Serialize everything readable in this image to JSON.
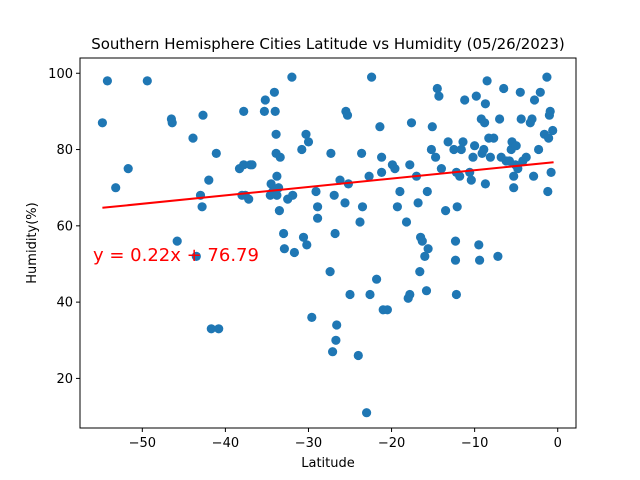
{
  "chart_data": {
    "type": "scatter",
    "title": "Southern Hemisphere Cities Latitude vs Humidity (05/26/2023)",
    "xlabel": "Latitude",
    "ylabel": "Humidity(%)",
    "xlim": [
      -57.5,
      2.2
    ],
    "ylim": [
      7,
      104
    ],
    "xticks": [
      -50,
      -40,
      -30,
      -20,
      -10,
      0
    ],
    "yticks": [
      20,
      40,
      60,
      80,
      100
    ],
    "grid": false,
    "point_color": "#1f77b4",
    "regression": {
      "slope": 0.22,
      "intercept": 76.79,
      "x_range": [
        -54.8,
        -0.5
      ],
      "color": "#ff0000",
      "equation_label": "y = 0.22x + 76.79"
    },
    "points": [
      [
        -54.8,
        87
      ],
      [
        -54.2,
        98
      ],
      [
        -53.2,
        70
      ],
      [
        -51.7,
        75
      ],
      [
        -49.4,
        98
      ],
      [
        -46.5,
        88
      ],
      [
        -46.4,
        87
      ],
      [
        -45.8,
        56
      ],
      [
        -43.9,
        83
      ],
      [
        -43.5,
        52
      ],
      [
        -43.0,
        68
      ],
      [
        -42.8,
        65
      ],
      [
        -42.7,
        89
      ],
      [
        -42.0,
        72
      ],
      [
        -41.7,
        33
      ],
      [
        -41.1,
        79
      ],
      [
        -40.8,
        33
      ],
      [
        -38.3,
        75
      ],
      [
        -38.0,
        68
      ],
      [
        -37.8,
        90
      ],
      [
        -37.8,
        76
      ],
      [
        -37.6,
        68
      ],
      [
        -37.2,
        67
      ],
      [
        -37.0,
        76
      ],
      [
        -36.8,
        76
      ],
      [
        -35.3,
        90
      ],
      [
        -35.2,
        93
      ],
      [
        -34.6,
        68
      ],
      [
        -34.5,
        71
      ],
      [
        -34.3,
        69
      ],
      [
        -34.1,
        95
      ],
      [
        -34.0,
        90
      ],
      [
        -33.9,
        84
      ],
      [
        -33.9,
        79
      ],
      [
        -33.8,
        73
      ],
      [
        -33.8,
        68
      ],
      [
        -33.6,
        70
      ],
      [
        -33.5,
        64
      ],
      [
        -33.4,
        78
      ],
      [
        -33.0,
        58
      ],
      [
        -32.9,
        54
      ],
      [
        -32.5,
        67
      ],
      [
        -32.0,
        99
      ],
      [
        -31.9,
        68
      ],
      [
        -31.7,
        53
      ],
      [
        -30.8,
        80
      ],
      [
        -30.6,
        57
      ],
      [
        -30.3,
        84
      ],
      [
        -30.2,
        55
      ],
      [
        -30.0,
        82
      ],
      [
        -29.6,
        36
      ],
      [
        -29.1,
        69
      ],
      [
        -28.9,
        65
      ],
      [
        -28.9,
        62
      ],
      [
        -27.3,
        79
      ],
      [
        -27.4,
        48
      ],
      [
        -27.1,
        27
      ],
      [
        -26.9,
        68
      ],
      [
        -26.8,
        58
      ],
      [
        -26.7,
        30
      ],
      [
        -26.6,
        34
      ],
      [
        -26.2,
        72
      ],
      [
        -25.6,
        66
      ],
      [
        -25.5,
        90
      ],
      [
        -25.3,
        89
      ],
      [
        -25.2,
        71
      ],
      [
        -25.0,
        42
      ],
      [
        -24.0,
        26
      ],
      [
        -23.8,
        61
      ],
      [
        -23.6,
        79
      ],
      [
        -23.5,
        65
      ],
      [
        -23.0,
        11
      ],
      [
        -22.7,
        73
      ],
      [
        -22.6,
        42
      ],
      [
        -22.4,
        99
      ],
      [
        -21.8,
        46
      ],
      [
        -21.4,
        86
      ],
      [
        -21.2,
        78
      ],
      [
        -21.2,
        74
      ],
      [
        -21.0,
        38
      ],
      [
        -20.5,
        38
      ],
      [
        -19.9,
        76
      ],
      [
        -19.6,
        75
      ],
      [
        -19.3,
        65
      ],
      [
        -19.0,
        69
      ],
      [
        -18.2,
        61
      ],
      [
        -18.0,
        41
      ],
      [
        -17.8,
        76
      ],
      [
        -17.8,
        42
      ],
      [
        -17.6,
        87
      ],
      [
        -17.0,
        73
      ],
      [
        -16.8,
        66
      ],
      [
        -16.6,
        48
      ],
      [
        -16.5,
        57
      ],
      [
        -16.3,
        56
      ],
      [
        -16.0,
        52
      ],
      [
        -15.8,
        43
      ],
      [
        -15.7,
        69
      ],
      [
        -15.6,
        54
      ],
      [
        -15.2,
        80
      ],
      [
        -15.1,
        86
      ],
      [
        -14.7,
        78
      ],
      [
        -14.5,
        96
      ],
      [
        -14.3,
        94
      ],
      [
        -14.0,
        75
      ],
      [
        -13.5,
        64
      ],
      [
        -13.2,
        82
      ],
      [
        -12.5,
        80
      ],
      [
        -12.3,
        56
      ],
      [
        -12.3,
        51
      ],
      [
        -12.2,
        42
      ],
      [
        -12.2,
        74
      ],
      [
        -12.1,
        65
      ],
      [
        -11.8,
        73
      ],
      [
        -11.6,
        80
      ],
      [
        -11.4,
        82
      ],
      [
        -11.2,
        93
      ],
      [
        -10.6,
        74
      ],
      [
        -10.4,
        72
      ],
      [
        -10.2,
        78
      ],
      [
        -10.0,
        81
      ],
      [
        -9.8,
        94
      ],
      [
        -9.5,
        55
      ],
      [
        -9.4,
        51
      ],
      [
        -9.2,
        88
      ],
      [
        -9.1,
        79
      ],
      [
        -8.9,
        80
      ],
      [
        -8.8,
        87
      ],
      [
        -8.7,
        92
      ],
      [
        -8.7,
        71
      ],
      [
        -8.5,
        98
      ],
      [
        -8.3,
        83
      ],
      [
        -8.1,
        78
      ],
      [
        -7.7,
        83
      ],
      [
        -7.2,
        52
      ],
      [
        -7.0,
        88
      ],
      [
        -6.8,
        78
      ],
      [
        -6.5,
        96
      ],
      [
        -6.2,
        77
      ],
      [
        -5.8,
        77
      ],
      [
        -5.6,
        80
      ],
      [
        -5.5,
        82
      ],
      [
        -5.3,
        70
      ],
      [
        -5.3,
        73
      ],
      [
        -5.1,
        76
      ],
      [
        -5.0,
        81
      ],
      [
        -4.8,
        75
      ],
      [
        -4.5,
        95
      ],
      [
        -4.4,
        88
      ],
      [
        -4.2,
        77
      ],
      [
        -3.8,
        78
      ],
      [
        -3.3,
        87
      ],
      [
        -3.1,
        88
      ],
      [
        -2.9,
        73
      ],
      [
        -2.8,
        93
      ],
      [
        -2.3,
        80
      ],
      [
        -2.1,
        95
      ],
      [
        -1.6,
        84
      ],
      [
        -1.3,
        99
      ],
      [
        -1.2,
        69
      ],
      [
        -1.1,
        83
      ],
      [
        -1.0,
        89
      ],
      [
        -0.9,
        90
      ],
      [
        -0.8,
        74
      ],
      [
        -0.6,
        85
      ]
    ]
  }
}
